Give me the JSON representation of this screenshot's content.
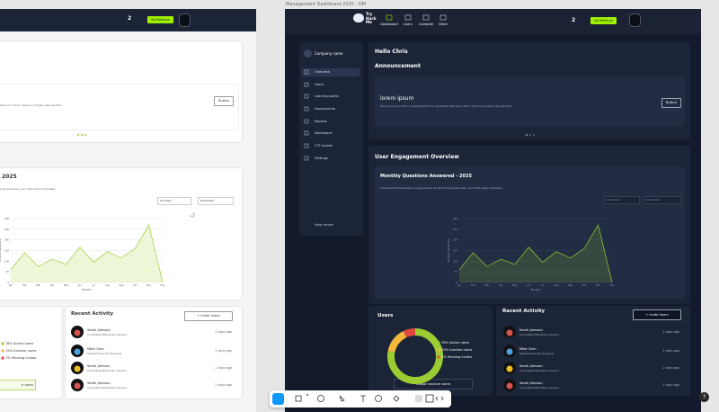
{
  "canvas": {
    "frame_label": "Management Dashboard 2025 - DM"
  },
  "nav": {
    "logo": [
      "Try",
      "Hack",
      "Me"
    ],
    "items": [
      "Dashboard",
      "Learn",
      "Compete",
      "Other"
    ],
    "streak": "2",
    "premium": "Go Premium"
  },
  "sidebar": {
    "company": "Company name",
    "items": [
      "Overview",
      "Users",
      "Learning paths",
      "Assignments",
      "Reports",
      "Workspace",
      "CTF builder",
      "Settings"
    ],
    "help": "Help centre"
  },
  "greeting": "Hello Chris",
  "announcement": {
    "title": "Announcement",
    "heading": "lorem ipsum",
    "body": "Duis aute irure dolor in reprehenderit in voluptate velit esse cillum dolore eu fugiat nulla pariatur.",
    "button": "Button"
  },
  "engagement": {
    "title": "User Engagement Overview",
    "chart_title": "Monthly Questions Answered - 2025",
    "description": "Includes SOC simulators, assignments, threat hunting exercises, and other team activities.",
    "filters": [
      "Dropdown",
      "Dropdown"
    ],
    "chart": {
      "type": "area",
      "x_label": "Months",
      "y_label": "Monthly questions",
      "categories": [
        "Jan",
        "Feb",
        "Mar",
        "Apr",
        "May",
        "Jun",
        "Jul",
        "Aug",
        "Sep",
        "Oct",
        "Nov",
        "Dec"
      ],
      "values": [
        60,
        140,
        75,
        110,
        85,
        165,
        95,
        145,
        115,
        160,
        270,
        0
      ],
      "ylim": [
        0,
        300
      ],
      "yticks": [
        0,
        50,
        100,
        150,
        200,
        250,
        300
      ],
      "grid": true,
      "color": "#9acd32"
    }
  },
  "users": {
    "title": "Users",
    "button": "Nudge inactive users",
    "segments": [
      {
        "label": "78% Active users",
        "value": 78,
        "color": "#9acd32"
      },
      {
        "label": "15% Inactive users",
        "value": 15,
        "color": "#f5b83d"
      },
      {
        "label": "7% Pending invites",
        "value": 7,
        "color": "#e0483e"
      }
    ]
  },
  "activity": {
    "title": "Recent Activity",
    "button": "+ Invite Users",
    "rows": [
      {
        "name": "Sarah Johnson",
        "action": "Completed BlackCat scenario",
        "time": "2 days ago"
      },
      {
        "name": "Mike Chen",
        "action": "Started Security Engineer",
        "time": "2 days ago"
      },
      {
        "name": "Sarah Johnson",
        "action": "Completed BlackCat scenario",
        "time": "2 days ago"
      },
      {
        "name": "Sarah Johnson",
        "action": "Completed BlackCat scenario",
        "time": "2 days ago"
      }
    ]
  },
  "light_frame": {
    "title_fragment": "2025",
    "description_fragment": "ning exercises, and other team activities.",
    "body_fragment": "with non cillum dolore eu fugiat nulla pariatur.",
    "filters": [
      "All Users",
      "Dropdown"
    ],
    "nudge_fragment": "e users"
  }
}
